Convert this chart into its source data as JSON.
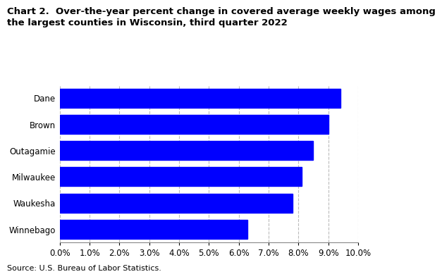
{
  "title_line1": "Chart 2.  Over-the-year percent change in covered average weekly wages among",
  "title_line2": "the largest counties in Wisconsin, third quarter 2022",
  "categories": [
    "Winnebago",
    "Waukesha",
    "Milwaukee",
    "Outagamie",
    "Brown",
    "Dane"
  ],
  "values": [
    0.063,
    0.078,
    0.081,
    0.085,
    0.09,
    0.094
  ],
  "bar_color": "#0000ff",
  "xlim": [
    0.0,
    0.1
  ],
  "xticks": [
    0.0,
    0.01,
    0.02,
    0.03,
    0.04,
    0.05,
    0.06,
    0.07,
    0.08,
    0.09,
    0.1
  ],
  "source": "Source: U.S. Bureau of Labor Statistics.",
  "title_fontsize": 9.5,
  "tick_fontsize": 8.5,
  "source_fontsize": 8.0,
  "bar_height": 0.72,
  "grid_color": "#bbbbbb",
  "background_color": "#ffffff"
}
